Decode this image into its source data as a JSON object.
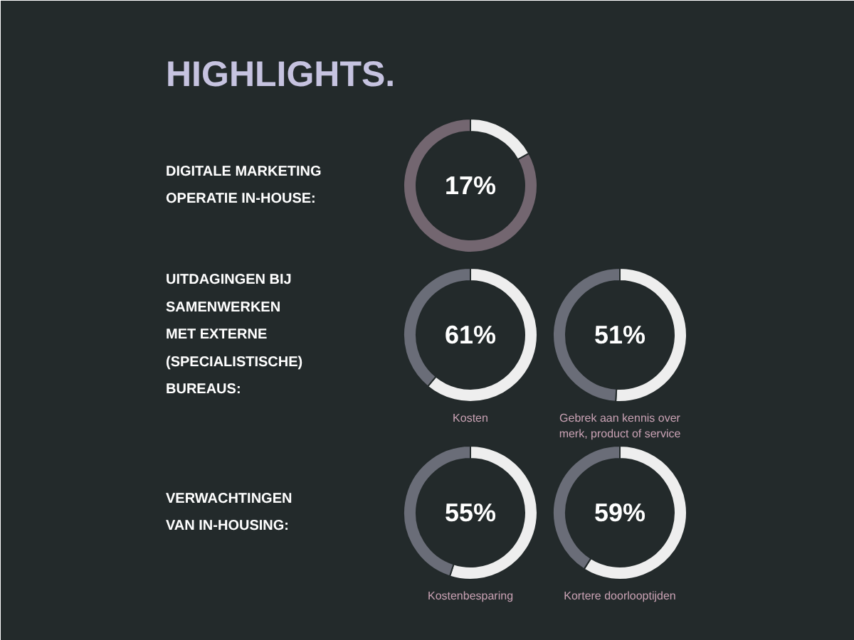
{
  "chart_data": [
    {
      "type": "other",
      "title": "HIGHLIGHTS."
    },
    {
      "type": "donut",
      "title": "DIGITALE MARKETING\nOPERATIE IN-HOUSE:",
      "categories": [
        null,
        null
      ],
      "values": [
        17,
        83
      ],
      "colors": [
        "#eeeeee",
        "#736670"
      ],
      "annotations": [
        "17%"
      ]
    },
    {
      "type": "donut",
      "title": "UITDAGINGEN BIJ\nSAMENWERKEN\nMET EXTERNE\n(SPECIALISTISCHE)\nBUREAUS:",
      "xlabel": "Kosten",
      "categories": [
        null,
        null
      ],
      "values": [
        61,
        39
      ],
      "colors": [
        "#eeeeee",
        "#6a6d78"
      ],
      "annotations": [
        "61%"
      ]
    },
    {
      "type": "donut",
      "xlabel": "Gebrek aan kennis over\nmerk, product of service",
      "categories": [
        null,
        null
      ],
      "values": [
        51,
        49
      ],
      "colors": [
        "#eeeeee",
        "#6a6d78"
      ],
      "annotations": [
        "51%"
      ]
    },
    {
      "type": "donut",
      "title": "VERWACHTINGEN\nVAN IN-HOUSING:",
      "xlabel": "Kostenbesparing",
      "categories": [
        null,
        null
      ],
      "values": [
        55,
        45
      ],
      "colors": [
        "#eeeeee",
        "#6a6d78"
      ],
      "annotations": [
        "55%"
      ]
    },
    {
      "type": "donut",
      "xlabel": "Kortere doorlooptijden",
      "categories": [
        null,
        null
      ],
      "values": [
        59,
        41
      ],
      "colors": [
        "#eeeeee",
        "#6a6d78"
      ],
      "annotations": [
        "59%"
      ]
    }
  ]
}
